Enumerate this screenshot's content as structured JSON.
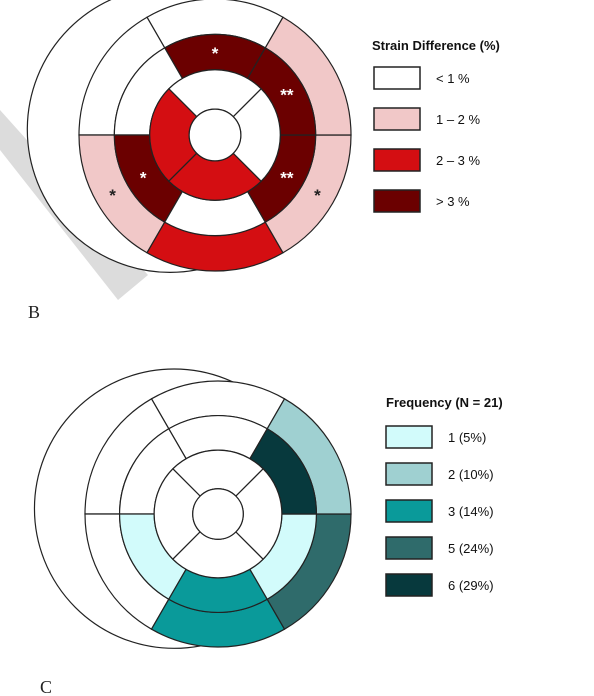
{
  "panel_b": {
    "letter": "B",
    "legend_title": "Strain Difference (%)",
    "legend": [
      {
        "label": "< 1 %",
        "color": "#ffffff"
      },
      {
        "label": "1 – 2 %",
        "color": "#f1c8c8"
      },
      {
        "label": "2 – 3 %",
        "color": "#d40e12"
      },
      {
        "label": "> 3 %",
        "color": "#6b0000"
      }
    ],
    "segments": [
      {
        "id": 1,
        "fill": "#ffffff",
        "mark": ""
      },
      {
        "id": 2,
        "fill": "#ffffff",
        "mark": ""
      },
      {
        "id": 3,
        "fill": "#f1c8c8",
        "mark": "*"
      },
      {
        "id": 4,
        "fill": "#d40e12",
        "mark": ""
      },
      {
        "id": 5,
        "fill": "#f1c8c8",
        "mark": "*"
      },
      {
        "id": 6,
        "fill": "#f1c8c8",
        "mark": ""
      },
      {
        "id": 7,
        "fill": "#6b0000",
        "mark": "*"
      },
      {
        "id": 8,
        "fill": "#ffffff",
        "mark": ""
      },
      {
        "id": 9,
        "fill": "#6b0000",
        "mark": "*"
      },
      {
        "id": 10,
        "fill": "#ffffff",
        "mark": ""
      },
      {
        "id": 11,
        "fill": "#6b0000",
        "mark": "**"
      },
      {
        "id": 12,
        "fill": "#6b0000",
        "mark": "**"
      },
      {
        "id": 13,
        "fill": "#ffffff",
        "mark": ""
      },
      {
        "id": 14,
        "fill": "#d40e12",
        "mark": ""
      },
      {
        "id": 15,
        "fill": "#d40e12",
        "mark": ""
      },
      {
        "id": 16,
        "fill": "#ffffff",
        "mark": ""
      },
      {
        "id": 17,
        "fill": "#ffffff",
        "mark": ""
      }
    ]
  },
  "panel_c": {
    "letter": "C",
    "legend_title": "Frequency (N = 21)",
    "legend": [
      {
        "label": "1 (5%)",
        "color": "#d2fbfb"
      },
      {
        "label": "2 (10%)",
        "color": "#9fd0d1"
      },
      {
        "label": "3 (14%)",
        "color": "#0a9a9a"
      },
      {
        "label": "5 (24%)",
        "color": "#2f6b6b"
      },
      {
        "label": "6 (29%)",
        "color": "#07393d"
      }
    ],
    "segments": [
      {
        "id": 1,
        "fill": "#ffffff"
      },
      {
        "id": 2,
        "fill": "#ffffff"
      },
      {
        "id": 3,
        "fill": "#ffffff"
      },
      {
        "id": 4,
        "fill": "#0a9a9a"
      },
      {
        "id": 5,
        "fill": "#2f6b6b"
      },
      {
        "id": 6,
        "fill": "#9fd0d1"
      },
      {
        "id": 7,
        "fill": "#ffffff"
      },
      {
        "id": 8,
        "fill": "#ffffff"
      },
      {
        "id": 9,
        "fill": "#d2fbfb"
      },
      {
        "id": 10,
        "fill": "#0a9a9a"
      },
      {
        "id": 11,
        "fill": "#d2fbfb"
      },
      {
        "id": 12,
        "fill": "#07393d"
      },
      {
        "id": 13,
        "fill": "#ffffff"
      },
      {
        "id": 14,
        "fill": "#ffffff"
      },
      {
        "id": 15,
        "fill": "#ffffff"
      },
      {
        "id": 16,
        "fill": "#ffffff"
      },
      {
        "id": 17,
        "fill": "#ffffff"
      }
    ]
  },
  "colors": {
    "stroke": "#222222",
    "watermark": "#d9d9d9"
  }
}
